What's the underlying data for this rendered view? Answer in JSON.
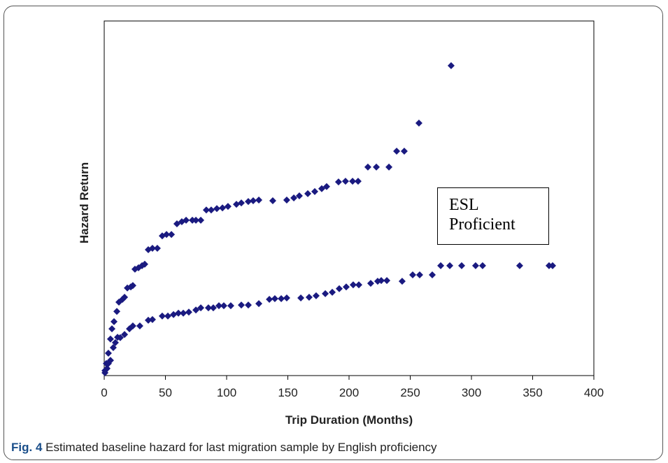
{
  "chart_data": {
    "type": "scatter",
    "x_label": "Trip Duration (Months)",
    "y_label": "Hazard Return",
    "annotation": "ESL Proficient",
    "xlim": [
      0,
      400
    ],
    "xticks": [
      0,
      50,
      100,
      150,
      200,
      250,
      300,
      350,
      400
    ],
    "ylim": [
      0,
      100
    ],
    "series": [
      {
        "color": "#1a1a80",
        "x": [
          0.6,
          1.7,
          3.4,
          5.1,
          6.3,
          8.0,
          10.3,
          12.0,
          14.9,
          16.6,
          18.9,
          21.7,
          23.4,
          25.1,
          28.0,
          30.9,
          33.1,
          36.0,
          39.4,
          43.4,
          47.4,
          50.9,
          54.9,
          59.4,
          63.4,
          66.9,
          72.0,
          74.9,
          78.9,
          83.4,
          87.4,
          92.0,
          96.6,
          101.1,
          108.0,
          112.0,
          117.7,
          121.7,
          126.3,
          137.7,
          149.1,
          154.9,
          159.4,
          166.3,
          172.0,
          177.7,
          181.7,
          191.4,
          197.1,
          202.9,
          207.4,
          215.4,
          222.3,
          232.6,
          238.9,
          245.1,
          257.1,
          283.4
        ],
        "values": [
          1.4,
          3.4,
          6.3,
          10.3,
          13.2,
          15.2,
          18.1,
          20.7,
          21.5,
          22.1,
          24.7,
          25.0,
          25.4,
          30.0,
          30.4,
          31.0,
          31.4,
          35.5,
          35.9,
          35.9,
          39.4,
          39.8,
          39.8,
          42.8,
          43.4,
          43.8,
          43.8,
          43.8,
          43.8,
          46.7,
          46.7,
          47.1,
          47.3,
          47.7,
          48.3,
          48.7,
          49.1,
          49.3,
          49.5,
          49.3,
          49.5,
          50.1,
          50.7,
          51.3,
          51.9,
          52.7,
          53.3,
          54.6,
          54.8,
          54.8,
          54.8,
          58.8,
          58.8,
          58.8,
          63.3,
          63.3,
          71.2,
          87.4
        ]
      },
      {
        "color": "#1a1a80",
        "x": [
          0.6,
          2.3,
          3.4,
          5.1,
          7.4,
          9.1,
          10.9,
          13.1,
          16.6,
          20.6,
          23.4,
          29.1,
          36.0,
          39.4,
          47.4,
          52.0,
          56.6,
          60.6,
          64.6,
          69.1,
          74.9,
          78.9,
          85.1,
          89.1,
          93.7,
          97.7,
          103.4,
          112.0,
          117.7,
          126.3,
          134.9,
          139.4,
          144.6,
          149.1,
          160.6,
          167.4,
          173.1,
          180.6,
          186.3,
          192.0,
          197.7,
          203.4,
          208.0,
          217.7,
          223.4,
          226.3,
          230.9,
          243.4,
          252.0,
          257.7,
          268.0,
          274.9,
          282.3,
          292.0,
          303.4,
          309.1,
          339.4,
          363.4,
          366.3
        ],
        "values": [
          0.8,
          2.0,
          3.4,
          4.3,
          7.9,
          9.3,
          10.8,
          10.7,
          11.6,
          13.2,
          14.0,
          14.0,
          15.6,
          15.8,
          16.8,
          16.8,
          17.2,
          17.6,
          17.6,
          17.9,
          18.5,
          19.1,
          19.1,
          19.1,
          19.7,
          19.7,
          19.7,
          19.9,
          19.9,
          20.3,
          21.5,
          21.7,
          21.7,
          21.9,
          21.9,
          22.1,
          22.5,
          23.1,
          23.5,
          24.5,
          25.0,
          25.6,
          25.6,
          26.0,
          26.6,
          26.8,
          26.8,
          26.6,
          28.4,
          28.4,
          28.4,
          31.0,
          31.0,
          31.0,
          31.0,
          31.0,
          31.0,
          31.0,
          31.0
        ]
      }
    ]
  },
  "caption": {
    "label": "Fig. 4",
    "text": "Estimated baseline hazard for last migration sample by English proficiency"
  }
}
